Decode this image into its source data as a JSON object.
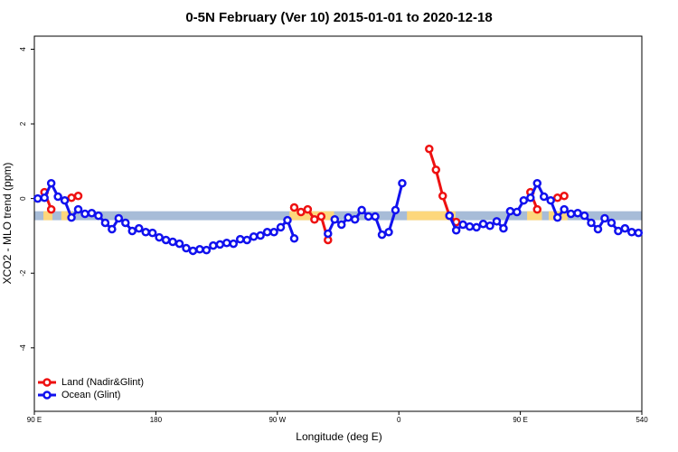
{
  "chart_data": {
    "type": "line",
    "title": "0-5N February (Ver 10)   2015-01-01 to 2020-12-18",
    "x_label": "Longitude (deg E)",
    "y_label": "XCO2 - MLO trend (ppm)",
    "xlim": [
      90,
      540
    ],
    "ylim": [
      -5.7,
      4.35
    ],
    "xticks": [
      {
        "value": 90,
        "label": "90 E"
      },
      180,
      {
        "value": 270,
        "label": "90 W"
      },
      {
        "value": 360,
        "label": "0"
      },
      {
        "value": 450,
        "label": "90 E"
      },
      540
    ],
    "yticks": [
      -4,
      -2,
      0,
      2,
      4
    ],
    "legend": "bottom-left",
    "band": {
      "range": [
        -0.58,
        -0.34
      ],
      "color": "#a7bcd8",
      "land_color": "#fdd77c",
      "land_ranges": [
        [
          96.7,
          103.4
        ],
        [
          110,
          118
        ],
        [
          279,
          312
        ],
        [
          366,
          402
        ],
        [
          455,
          466
        ],
        [
          471,
          485
        ]
      ]
    },
    "x": [
      92.5,
      97.5,
      102.5,
      107.5,
      112.5,
      117.5,
      122.5,
      127.5,
      132.5,
      137.5,
      142.5,
      147.5,
      152.5,
      157.5,
      162.5,
      167.5,
      172.5,
      177.5,
      182.5,
      187.5,
      192.5,
      197.5,
      202.5,
      207.5,
      212.5,
      217.5,
      222.5,
      227.5,
      232.5,
      237.5,
      242.5,
      247.5,
      252.5,
      257.5,
      262.5,
      267.5,
      272.5,
      277.5,
      282.5,
      287.5,
      292.5,
      297.5,
      302.5,
      307.5,
      312.5,
      317.5,
      322.5,
      327.5,
      332.5,
      337.5,
      342.5,
      347.5,
      352.5,
      357.5,
      362.5,
      367.5,
      372.5,
      377.5,
      382.5,
      387.5,
      392.5,
      397.5,
      402.5,
      407.5,
      412.5,
      417.5,
      422.5,
      427.5,
      432.5,
      437.5,
      442.5,
      447.5,
      452.5,
      457.5,
      462.5,
      467.5,
      472.5,
      477.5,
      482.5,
      487.5,
      492.5,
      497.5,
      502.5,
      507.5,
      512.5,
      517.5,
      522.5,
      527.5,
      532.5,
      537.5
    ],
    "series": [
      {
        "name": "Land (Nadir&Glint)",
        "color": "#ee1111",
        "values": [
          null,
          0.17,
          -0.29,
          null,
          null,
          0.02,
          0.07,
          null,
          null,
          null,
          null,
          null,
          null,
          null,
          null,
          null,
          null,
          null,
          null,
          null,
          null,
          null,
          null,
          null,
          null,
          null,
          null,
          null,
          null,
          null,
          null,
          null,
          null,
          null,
          null,
          null,
          null,
          null,
          -0.24,
          -0.36,
          -0.29,
          -0.56,
          -0.48,
          -1.11,
          null,
          null,
          null,
          null,
          null,
          null,
          null,
          null,
          null,
          null,
          null,
          null,
          null,
          null,
          1.33,
          0.77,
          0.07,
          -0.46,
          -0.63,
          null,
          null,
          null,
          null,
          null,
          null,
          null,
          null,
          null,
          null,
          0.17,
          -0.29,
          null,
          null,
          0.02,
          0.07,
          null,
          null,
          null,
          null,
          null,
          null,
          null,
          null,
          null,
          null,
          null
        ]
      },
      {
        "name": "Ocean (Glint)",
        "color": "#1111ee",
        "values": [
          0.0,
          0.02,
          0.41,
          0.05,
          -0.05,
          -0.51,
          -0.29,
          -0.41,
          -0.39,
          -0.46,
          -0.65,
          -0.82,
          -0.53,
          -0.65,
          -0.87,
          -0.8,
          -0.9,
          -0.92,
          -1.04,
          -1.11,
          -1.16,
          -1.21,
          -1.33,
          -1.4,
          -1.36,
          -1.38,
          -1.26,
          -1.23,
          -1.19,
          -1.21,
          -1.09,
          -1.11,
          -1.02,
          -0.99,
          -0.9,
          -0.9,
          -0.77,
          -0.58,
          -1.07,
          null,
          null,
          null,
          null,
          -0.94,
          -0.56,
          -0.7,
          -0.51,
          -0.56,
          -0.31,
          -0.48,
          -0.48,
          -0.97,
          -0.9,
          -0.31,
          0.41,
          null,
          null,
          null,
          null,
          null,
          null,
          -0.46,
          -0.85,
          -0.7,
          -0.75,
          -0.77,
          -0.68,
          -0.73,
          -0.61,
          -0.8,
          -0.34,
          -0.36,
          -0.05,
          0.02,
          0.41,
          0.05,
          -0.05,
          -0.51,
          -0.29,
          -0.41,
          -0.39,
          -0.46,
          -0.65,
          -0.82,
          -0.53,
          -0.65,
          -0.87,
          -0.8,
          -0.9,
          -0.92
        ]
      }
    ]
  }
}
